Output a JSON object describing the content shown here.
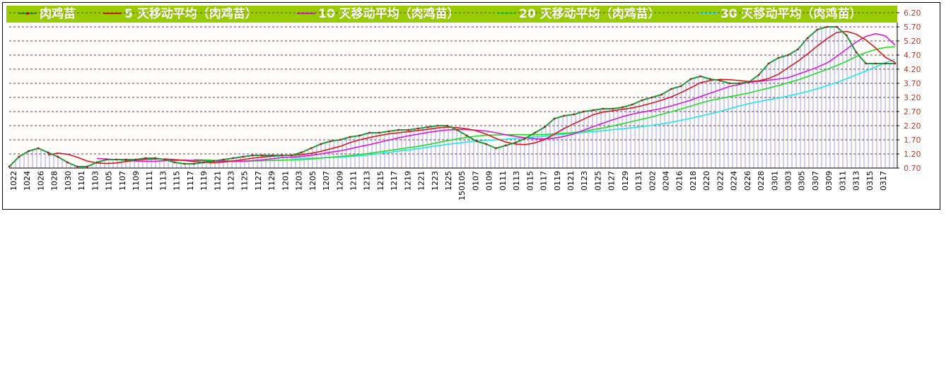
{
  "chart_data": {
    "type": "line",
    "legend_placement": "top",
    "ylim": [
      0.7,
      6.2
    ],
    "y_ticks": [
      "6.20",
      "5.70",
      "5.20",
      "4.70",
      "4.20",
      "3.70",
      "3.20",
      "2.70",
      "2.20",
      "1.70",
      "1.20",
      "0.70"
    ],
    "x_tick_labels": [
      "1022",
      "1024",
      "1026",
      "1028",
      "1030",
      "1101",
      "1103",
      "1105",
      "1107",
      "1109",
      "1111",
      "1113",
      "1115",
      "1117",
      "1119",
      "1121",
      "1123",
      "1125",
      "1127",
      "1129",
      "1201",
      "1203",
      "1205",
      "1207",
      "1209",
      "1211",
      "1213",
      "1215",
      "1217",
      "1219",
      "1221",
      "1223",
      "1225",
      "150105",
      "0107",
      "0109",
      "0111",
      "0113",
      "0115",
      "0117",
      "0119",
      "0121",
      "0123",
      "0125",
      "0127",
      "0129",
      "0131",
      "0202",
      "0204",
      "0216",
      "0218",
      "0220",
      "0222",
      "0224",
      "0226",
      "0228",
      "0301",
      "0303",
      "0305",
      "0307",
      "0309",
      "0311",
      "0313",
      "0315",
      "0317"
    ],
    "series": [
      {
        "name": "肉鸡苗",
        "color": "#1f9a3c",
        "values": [
          0.75,
          1.1,
          1.3,
          1.4,
          1.25,
          1.1,
          0.9,
          0.75,
          0.75,
          0.9,
          1.0,
          1.0,
          1.0,
          1.0,
          1.05,
          1.05,
          1.0,
          0.9,
          0.85,
          0.85,
          0.9,
          0.95,
          1.0,
          1.05,
          1.1,
          1.15,
          1.15,
          1.15,
          1.15,
          1.15,
          1.25,
          1.4,
          1.55,
          1.65,
          1.7,
          1.8,
          1.85,
          1.95,
          1.95,
          2.0,
          2.05,
          2.05,
          2.1,
          2.15,
          2.2,
          2.2,
          2.05,
          1.85,
          1.65,
          1.55,
          1.4,
          1.5,
          1.6,
          1.75,
          1.95,
          2.15,
          2.45,
          2.55,
          2.6,
          2.7,
          2.75,
          2.8,
          2.8,
          2.85,
          2.95,
          3.1,
          3.2,
          3.3,
          3.5,
          3.6,
          3.85,
          3.95,
          3.85,
          3.8,
          3.7,
          3.7,
          3.75,
          4.0,
          4.4,
          4.6,
          4.7,
          4.9,
          5.3,
          5.6,
          5.7,
          5.7,
          5.4,
          4.8,
          4.4,
          4.4,
          4.4,
          4.4
        ]
      },
      {
        "name": "5 天移动平均（肉鸡苗）",
        "color": "#d61a1a",
        "values": [
          null,
          null,
          null,
          null,
          1.16,
          1.23,
          1.19,
          1.08,
          0.95,
          0.88,
          0.86,
          0.88,
          0.93,
          0.98,
          1.01,
          1.02,
          1.02,
          1.0,
          0.97,
          0.93,
          0.9,
          0.89,
          0.91,
          0.95,
          1.0,
          1.05,
          1.09,
          1.12,
          1.14,
          1.15,
          1.17,
          1.22,
          1.29,
          1.38,
          1.47,
          1.6,
          1.7,
          1.78,
          1.85,
          1.91,
          1.95,
          1.99,
          2.03,
          2.07,
          2.12,
          2.15,
          2.13,
          2.09,
          2.02,
          1.9,
          1.75,
          1.62,
          1.55,
          1.53,
          1.59,
          1.71,
          1.9,
          2.1,
          2.27,
          2.43,
          2.59,
          2.68,
          2.73,
          2.78,
          2.83,
          2.91,
          3.0,
          3.1,
          3.22,
          3.37,
          3.54,
          3.72,
          3.8,
          3.84,
          3.83,
          3.8,
          3.76,
          3.79,
          3.87,
          4.02,
          4.25,
          4.48,
          4.74,
          5.02,
          5.28,
          5.5,
          5.54,
          5.44,
          5.23,
          4.95,
          4.62,
          4.44
        ]
      },
      {
        "name": "10 天移动平均（肉鸡苗）",
        "color": "#d61ad6",
        "values": [
          null,
          null,
          null,
          null,
          null,
          null,
          null,
          null,
          null,
          1.04,
          1.02,
          1.0,
          0.97,
          0.95,
          0.94,
          0.94,
          0.96,
          0.97,
          0.98,
          0.97,
          0.96,
          0.95,
          0.94,
          0.94,
          0.94,
          0.96,
          0.99,
          1.03,
          1.07,
          1.09,
          1.11,
          1.15,
          1.2,
          1.26,
          1.31,
          1.38,
          1.46,
          1.53,
          1.61,
          1.69,
          1.77,
          1.84,
          1.9,
          1.96,
          2.01,
          2.05,
          2.06,
          2.06,
          2.04,
          2.01,
          1.95,
          1.88,
          1.82,
          1.77,
          1.74,
          1.73,
          1.76,
          1.82,
          1.91,
          2.04,
          2.17,
          2.29,
          2.41,
          2.52,
          2.61,
          2.68,
          2.74,
          2.81,
          2.9,
          3.0,
          3.1,
          3.23,
          3.35,
          3.47,
          3.59,
          3.66,
          3.74,
          3.77,
          3.81,
          3.85,
          3.9,
          4.02,
          4.14,
          4.27,
          4.42,
          4.65,
          4.91,
          5.16,
          5.36,
          5.46,
          5.38,
          5.05
        ]
      },
      {
        "name": "20 天移动平均（肉鸡苗）",
        "color": "#22dd22",
        "values": [
          null,
          null,
          null,
          null,
          null,
          null,
          null,
          null,
          null,
          null,
          null,
          null,
          null,
          null,
          null,
          null,
          null,
          null,
          null,
          1.0,
          0.99,
          0.97,
          0.96,
          0.95,
          0.95,
          0.95,
          0.96,
          0.97,
          0.98,
          0.99,
          1.0,
          1.02,
          1.05,
          1.08,
          1.11,
          1.14,
          1.18,
          1.22,
          1.27,
          1.32,
          1.37,
          1.42,
          1.47,
          1.53,
          1.6,
          1.67,
          1.73,
          1.79,
          1.83,
          1.86,
          1.87,
          1.88,
          1.88,
          1.88,
          1.88,
          1.89,
          1.91,
          1.93,
          1.96,
          2.0,
          2.06,
          2.12,
          2.19,
          2.27,
          2.35,
          2.43,
          2.51,
          2.6,
          2.69,
          2.79,
          2.89,
          3.0,
          3.09,
          3.16,
          3.23,
          3.29,
          3.36,
          3.45,
          3.53,
          3.62,
          3.72,
          3.82,
          3.94,
          4.07,
          4.19,
          4.33,
          4.48,
          4.65,
          4.79,
          4.9,
          4.97,
          5.0
        ]
      },
      {
        "name": "30 天移动平均（肉鸡苗）",
        "color": "#22e6e6",
        "values": [
          null,
          null,
          null,
          null,
          null,
          null,
          null,
          null,
          null,
          null,
          null,
          null,
          null,
          null,
          null,
          null,
          null,
          null,
          null,
          null,
          null,
          null,
          null,
          null,
          null,
          null,
          null,
          null,
          null,
          1.05,
          1.05,
          1.05,
          1.06,
          1.08,
          1.09,
          1.11,
          1.13,
          1.17,
          1.21,
          1.25,
          1.3,
          1.34,
          1.39,
          1.44,
          1.49,
          1.54,
          1.58,
          1.62,
          1.66,
          1.68,
          1.7,
          1.72,
          1.75,
          1.77,
          1.8,
          1.83,
          1.87,
          1.9,
          1.93,
          1.96,
          1.99,
          2.02,
          2.06,
          2.09,
          2.13,
          2.17,
          2.21,
          2.26,
          2.32,
          2.39,
          2.46,
          2.54,
          2.62,
          2.71,
          2.8,
          2.9,
          2.98,
          3.05,
          3.12,
          3.18,
          3.25,
          3.33,
          3.41,
          3.51,
          3.62,
          3.73,
          3.86,
          4.0,
          4.14,
          4.28,
          4.43,
          4.55
        ]
      }
    ]
  }
}
